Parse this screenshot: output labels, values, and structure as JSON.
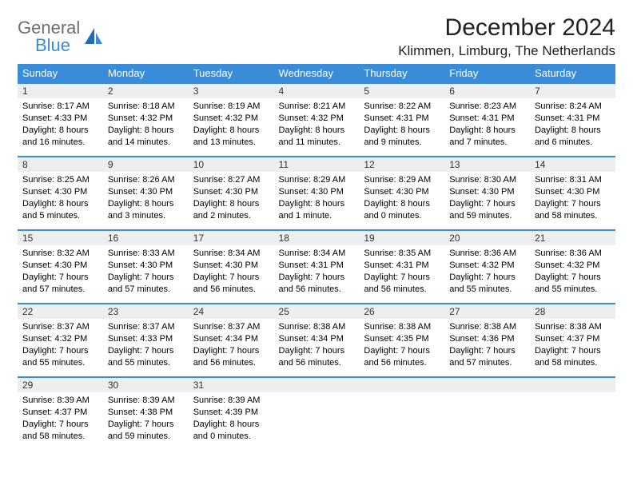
{
  "brand": {
    "line1": "General",
    "line2": "Blue"
  },
  "title": "December 2024",
  "location": "Klimmen, Limburg, The Netherlands",
  "colors": {
    "header_bg": "#3a8bd8",
    "header_text": "#ffffff",
    "daynum_bg": "#eceef0",
    "border": "#3a8bd8",
    "logo_gray": "#6e6e6e",
    "logo_blue": "#3a8bd8"
  },
  "weekdays": [
    "Sunday",
    "Monday",
    "Tuesday",
    "Wednesday",
    "Thursday",
    "Friday",
    "Saturday"
  ],
  "weeks": [
    [
      {
        "n": "1",
        "sr": "Sunrise: 8:17 AM",
        "ss": "Sunset: 4:33 PM",
        "dl": "Daylight: 8 hours and 16 minutes."
      },
      {
        "n": "2",
        "sr": "Sunrise: 8:18 AM",
        "ss": "Sunset: 4:32 PM",
        "dl": "Daylight: 8 hours and 14 minutes."
      },
      {
        "n": "3",
        "sr": "Sunrise: 8:19 AM",
        "ss": "Sunset: 4:32 PM",
        "dl": "Daylight: 8 hours and 13 minutes."
      },
      {
        "n": "4",
        "sr": "Sunrise: 8:21 AM",
        "ss": "Sunset: 4:32 PM",
        "dl": "Daylight: 8 hours and 11 minutes."
      },
      {
        "n": "5",
        "sr": "Sunrise: 8:22 AM",
        "ss": "Sunset: 4:31 PM",
        "dl": "Daylight: 8 hours and 9 minutes."
      },
      {
        "n": "6",
        "sr": "Sunrise: 8:23 AM",
        "ss": "Sunset: 4:31 PM",
        "dl": "Daylight: 8 hours and 7 minutes."
      },
      {
        "n": "7",
        "sr": "Sunrise: 8:24 AM",
        "ss": "Sunset: 4:31 PM",
        "dl": "Daylight: 8 hours and 6 minutes."
      }
    ],
    [
      {
        "n": "8",
        "sr": "Sunrise: 8:25 AM",
        "ss": "Sunset: 4:30 PM",
        "dl": "Daylight: 8 hours and 5 minutes."
      },
      {
        "n": "9",
        "sr": "Sunrise: 8:26 AM",
        "ss": "Sunset: 4:30 PM",
        "dl": "Daylight: 8 hours and 3 minutes."
      },
      {
        "n": "10",
        "sr": "Sunrise: 8:27 AM",
        "ss": "Sunset: 4:30 PM",
        "dl": "Daylight: 8 hours and 2 minutes."
      },
      {
        "n": "11",
        "sr": "Sunrise: 8:29 AM",
        "ss": "Sunset: 4:30 PM",
        "dl": "Daylight: 8 hours and 1 minute."
      },
      {
        "n": "12",
        "sr": "Sunrise: 8:29 AM",
        "ss": "Sunset: 4:30 PM",
        "dl": "Daylight: 8 hours and 0 minutes."
      },
      {
        "n": "13",
        "sr": "Sunrise: 8:30 AM",
        "ss": "Sunset: 4:30 PM",
        "dl": "Daylight: 7 hours and 59 minutes."
      },
      {
        "n": "14",
        "sr": "Sunrise: 8:31 AM",
        "ss": "Sunset: 4:30 PM",
        "dl": "Daylight: 7 hours and 58 minutes."
      }
    ],
    [
      {
        "n": "15",
        "sr": "Sunrise: 8:32 AM",
        "ss": "Sunset: 4:30 PM",
        "dl": "Daylight: 7 hours and 57 minutes."
      },
      {
        "n": "16",
        "sr": "Sunrise: 8:33 AM",
        "ss": "Sunset: 4:30 PM",
        "dl": "Daylight: 7 hours and 57 minutes."
      },
      {
        "n": "17",
        "sr": "Sunrise: 8:34 AM",
        "ss": "Sunset: 4:30 PM",
        "dl": "Daylight: 7 hours and 56 minutes."
      },
      {
        "n": "18",
        "sr": "Sunrise: 8:34 AM",
        "ss": "Sunset: 4:31 PM",
        "dl": "Daylight: 7 hours and 56 minutes."
      },
      {
        "n": "19",
        "sr": "Sunrise: 8:35 AM",
        "ss": "Sunset: 4:31 PM",
        "dl": "Daylight: 7 hours and 56 minutes."
      },
      {
        "n": "20",
        "sr": "Sunrise: 8:36 AM",
        "ss": "Sunset: 4:32 PM",
        "dl": "Daylight: 7 hours and 55 minutes."
      },
      {
        "n": "21",
        "sr": "Sunrise: 8:36 AM",
        "ss": "Sunset: 4:32 PM",
        "dl": "Daylight: 7 hours and 55 minutes."
      }
    ],
    [
      {
        "n": "22",
        "sr": "Sunrise: 8:37 AM",
        "ss": "Sunset: 4:32 PM",
        "dl": "Daylight: 7 hours and 55 minutes."
      },
      {
        "n": "23",
        "sr": "Sunrise: 8:37 AM",
        "ss": "Sunset: 4:33 PM",
        "dl": "Daylight: 7 hours and 55 minutes."
      },
      {
        "n": "24",
        "sr": "Sunrise: 8:37 AM",
        "ss": "Sunset: 4:34 PM",
        "dl": "Daylight: 7 hours and 56 minutes."
      },
      {
        "n": "25",
        "sr": "Sunrise: 8:38 AM",
        "ss": "Sunset: 4:34 PM",
        "dl": "Daylight: 7 hours and 56 minutes."
      },
      {
        "n": "26",
        "sr": "Sunrise: 8:38 AM",
        "ss": "Sunset: 4:35 PM",
        "dl": "Daylight: 7 hours and 56 minutes."
      },
      {
        "n": "27",
        "sr": "Sunrise: 8:38 AM",
        "ss": "Sunset: 4:36 PM",
        "dl": "Daylight: 7 hours and 57 minutes."
      },
      {
        "n": "28",
        "sr": "Sunrise: 8:38 AM",
        "ss": "Sunset: 4:37 PM",
        "dl": "Daylight: 7 hours and 58 minutes."
      }
    ],
    [
      {
        "n": "29",
        "sr": "Sunrise: 8:39 AM",
        "ss": "Sunset: 4:37 PM",
        "dl": "Daylight: 7 hours and 58 minutes."
      },
      {
        "n": "30",
        "sr": "Sunrise: 8:39 AM",
        "ss": "Sunset: 4:38 PM",
        "dl": "Daylight: 7 hours and 59 minutes."
      },
      {
        "n": "31",
        "sr": "Sunrise: 8:39 AM",
        "ss": "Sunset: 4:39 PM",
        "dl": "Daylight: 8 hours and 0 minutes."
      },
      {
        "n": "",
        "sr": "",
        "ss": "",
        "dl": ""
      },
      {
        "n": "",
        "sr": "",
        "ss": "",
        "dl": ""
      },
      {
        "n": "",
        "sr": "",
        "ss": "",
        "dl": ""
      },
      {
        "n": "",
        "sr": "",
        "ss": "",
        "dl": ""
      }
    ]
  ]
}
